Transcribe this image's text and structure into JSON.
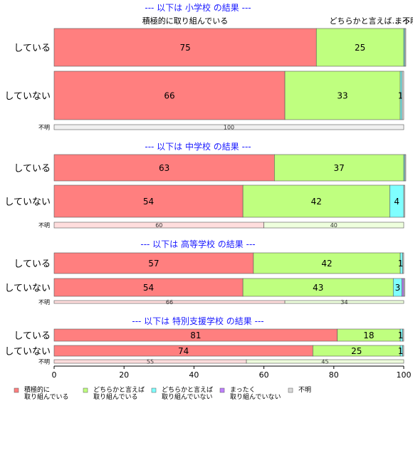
{
  "chart_data": {
    "type": "bar",
    "orientation": "horizontal",
    "stacked": true,
    "xlim": [
      0,
      100
    ],
    "xticks": [
      0,
      20,
      40,
      60,
      80,
      100
    ],
    "legend_position": "bottom-left",
    "categories": [
      "積極的に取り組んでいる",
      "どちらかと言えば取り組んでいる",
      "どちらかと言えば取り組んでいない",
      "まったく取り組んでいない",
      "不明"
    ],
    "colors": [
      "#ff7f7f",
      "#bfff7f",
      "#7fffff",
      "#bf7fff",
      "#d9d9d9"
    ],
    "legend": [
      {
        "lines": [
          "積極的に",
          "取り組んでいる"
        ],
        "color": "#ff7f7f"
      },
      {
        "lines": [
          "どちらかと言えば",
          "取り組んでいる"
        ],
        "color": "#bfff7f"
      },
      {
        "lines": [
          "どちらかと言えば",
          "取り組んでいない"
        ],
        "color": "#7fffff"
      },
      {
        "lines": [
          "まったく",
          "取り組んでいない"
        ],
        "color": "#bf7fff"
      },
      {
        "lines": [
          "不明"
        ],
        "color": "#d9d9d9"
      }
    ],
    "top_labels": [
      "積極的に取り組んでいる",
      "どちらかと言えば…",
      "まっ…",
      "不明"
    ],
    "sections": [
      {
        "title": "--- 以下は 小学校 の結果 ---",
        "rows": [
          {
            "label": "している",
            "values": [
              75,
              25,
              0.3,
              0,
              0.3
            ],
            "labels": [
              "75",
              "25",
              "",
              "",
              ""
            ]
          },
          {
            "label": "していない",
            "values": [
              66,
              33,
              0.5,
              0,
              0.5
            ],
            "labels": [
              "66",
              "33",
              "1",
              "",
              ""
            ]
          },
          {
            "label": "不明",
            "values": [
              0,
              0,
              0,
              0,
              100
            ],
            "labels": [
              "",
              "",
              "",
              "",
              "100"
            ],
            "small": true
          }
        ]
      },
      {
        "title": "--- 以下は 中学校 の結果 ---",
        "rows": [
          {
            "label": "している",
            "values": [
              63,
              37,
              0.3,
              0,
              0.3
            ],
            "labels": [
              "63",
              "37",
              "",
              "",
              ""
            ]
          },
          {
            "label": "していない",
            "values": [
              54,
              42,
              4,
              0,
              0.3
            ],
            "labels": [
              "54",
              "42",
              "4",
              "",
              ""
            ]
          },
          {
            "label": "不明",
            "values": [
              60,
              40,
              0,
              0,
              0
            ],
            "labels": [
              "60",
              "40",
              "",
              "",
              ""
            ],
            "small": true
          }
        ]
      },
      {
        "title": "--- 以下は 高等学校 の結果 ---",
        "rows": [
          {
            "label": "している",
            "values": [
              57,
              42,
              0.7,
              0,
              0.3
            ],
            "labels": [
              "57",
              "42",
              "1",
              "",
              ""
            ]
          },
          {
            "label": "していない",
            "values": [
              54,
              43,
              2.5,
              0.5,
              0.3
            ],
            "labels": [
              "54",
              "43",
              "3",
              "",
              ""
            ]
          },
          {
            "label": "不明",
            "values": [
              66,
              34,
              0,
              0,
              0
            ],
            "labels": [
              "66",
              "34",
              "",
              "",
              ""
            ],
            "small": true
          }
        ]
      },
      {
        "title": "--- 以下は 特別支援学校 の結果 ---",
        "rows": [
          {
            "label": "している",
            "values": [
              81,
              18,
              0.7,
              0,
              0.3
            ],
            "labels": [
              "81",
              "18",
              "1",
              "",
              ""
            ]
          },
          {
            "label": "していない",
            "values": [
              74,
              25,
              0.7,
              0,
              0.3
            ],
            "labels": [
              "74",
              "25",
              "1",
              "",
              ""
            ]
          },
          {
            "label": "不明",
            "values": [
              55,
              45,
              0,
              0,
              0
            ],
            "labels": [
              "55",
              "45",
              "",
              "",
              ""
            ],
            "small": true
          }
        ]
      }
    ]
  }
}
